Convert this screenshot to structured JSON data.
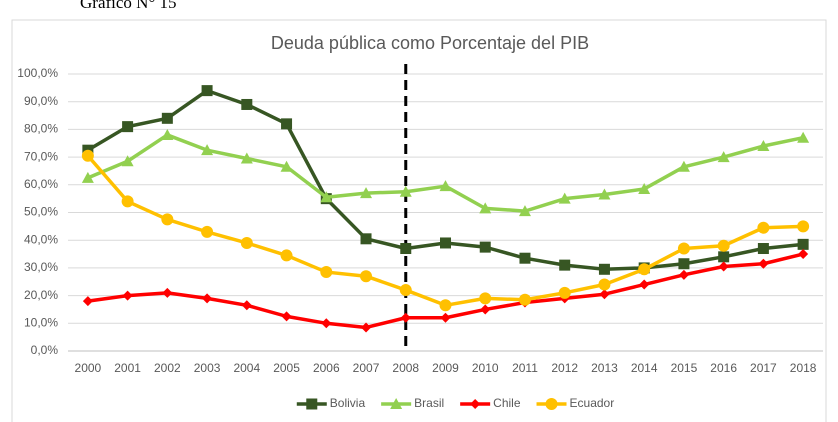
{
  "caption": "Gráfico N° 15",
  "chart_data": {
    "type": "line",
    "title": "Deuda pública como Porcentaje del PIB",
    "categories": [
      "2000",
      "2001",
      "2002",
      "2003",
      "2004",
      "2005",
      "2006",
      "2007",
      "2008",
      "2009",
      "2010",
      "2011",
      "2012",
      "2013",
      "2014",
      "2015",
      "2016",
      "2017",
      "2018"
    ],
    "series": [
      {
        "name": "Bolivia",
        "color": "#375623",
        "marker": "square",
        "values": [
          72.5,
          81,
          84,
          94,
          89,
          82,
          55,
          40.5,
          37,
          39,
          37.5,
          33.5,
          31,
          29.5,
          30,
          31.5,
          34,
          37,
          38.5
        ]
      },
      {
        "name": "Brasil",
        "color": "#92d050",
        "marker": "triangle",
        "values": [
          62.5,
          68.5,
          78,
          72.5,
          69.5,
          66.5,
          55.5,
          57,
          57.5,
          59.5,
          51.5,
          50.5,
          55,
          56.5,
          58.5,
          66.5,
          70,
          74,
          77
        ]
      },
      {
        "name": "Chile",
        "color": "#ff0000",
        "marker": "diamond",
        "values": [
          18,
          20,
          21,
          19,
          16.5,
          12.5,
          10,
          8.5,
          12,
          12,
          15,
          17.5,
          19,
          20.5,
          24,
          27.5,
          30.5,
          31.5,
          35
        ]
      },
      {
        "name": "Ecuador",
        "color": "#ffc000",
        "marker": "circle",
        "values": [
          70.5,
          54,
          47.5,
          43,
          39,
          34.5,
          28.5,
          27,
          22,
          16.5,
          19,
          18.5,
          21,
          24,
          29.5,
          37,
          38,
          44.5,
          45
        ]
      }
    ],
    "ylim": [
      0,
      100
    ],
    "yticks": [
      {
        "value": 0,
        "label": "0,0%"
      },
      {
        "value": 10,
        "label": "10,0%"
      },
      {
        "value": 20,
        "label": "20,0%"
      },
      {
        "value": 30,
        "label": "30,0%"
      },
      {
        "value": 40,
        "label": "40,0%"
      },
      {
        "value": 50,
        "label": "50,0%"
      },
      {
        "value": 60,
        "label": "60,0%"
      },
      {
        "value": 70,
        "label": "70,0%"
      },
      {
        "value": 80,
        "label": "80,0%"
      },
      {
        "value": 90,
        "label": "90,0%"
      },
      {
        "value": 100,
        "label": "100,0%"
      }
    ],
    "grid": true,
    "legend": "bottom",
    "reference_line": "2008"
  }
}
